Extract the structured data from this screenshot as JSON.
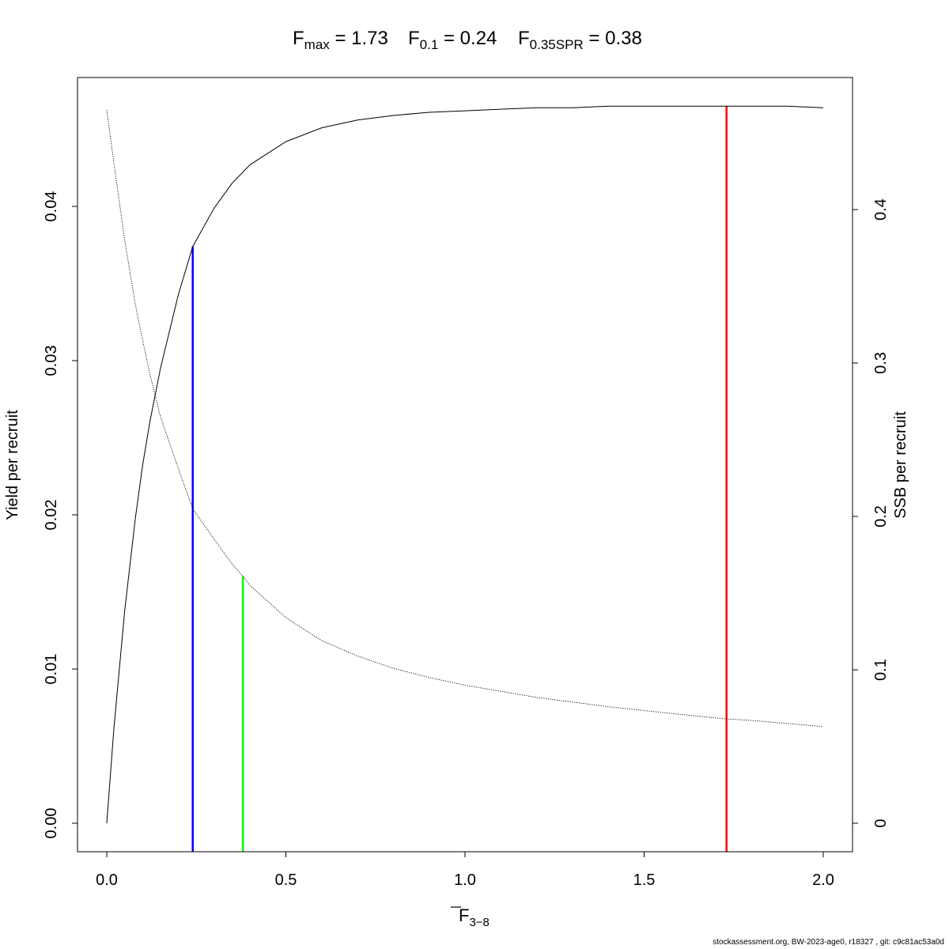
{
  "title": {
    "fmax": {
      "base": "F",
      "sub": "max",
      "value": "1.73"
    },
    "f01": {
      "base": "F",
      "sub": "0.1",
      "value": "0.24"
    },
    "fspr": {
      "base": "F",
      "sub": "0.35SPR",
      "value": "0.38"
    }
  },
  "footer": "stockassessment.org, BW-2023-age0, r18327 , git: c9c81ac53a0d",
  "chart_data": {
    "type": "line",
    "title": "Fmax = 1.73   F0.1 = 0.24   F0.35SPR = 0.38",
    "xlabel": {
      "base": "F",
      "sub": "3−8",
      "overline": true
    },
    "ylabel_left": "Yield per recruit",
    "ylabel_right": "SSB per recruit",
    "xlim": [
      0,
      2
    ],
    "ylim_left": [
      0,
      0.0465
    ],
    "ylim_right": [
      0,
      0.465
    ],
    "x_ticks": [
      "0.0",
      "0.5",
      "1.0",
      "1.5",
      "2.0"
    ],
    "x_tick_values": [
      0,
      0.5,
      1.0,
      1.5,
      2.0
    ],
    "y_left_ticks": [
      "0.00",
      "0.01",
      "0.02",
      "0.03",
      "0.04"
    ],
    "y_left_tick_values": [
      0,
      0.01,
      0.02,
      0.03,
      0.04
    ],
    "y_right_ticks": [
      "0",
      "0.1",
      "0.2",
      "0.3",
      "0.4"
    ],
    "y_right_tick_values": [
      0,
      0.1,
      0.2,
      0.3,
      0.4
    ],
    "grid": false,
    "series": [
      {
        "axis": "left",
        "style": "solid",
        "color": "#000000",
        "x": [
          0,
          0.02,
          0.05,
          0.08,
          0.1,
          0.12,
          0.15,
          0.2,
          0.24,
          0.3,
          0.35,
          0.4,
          0.5,
          0.6,
          0.7,
          0.8,
          0.9,
          1.0,
          1.1,
          1.2,
          1.3,
          1.4,
          1.5,
          1.6,
          1.73,
          1.8,
          1.9,
          2.0
        ],
        "y": [
          0,
          0.0062,
          0.0138,
          0.0198,
          0.0232,
          0.026,
          0.0295,
          0.0343,
          0.0374,
          0.0399,
          0.0415,
          0.0427,
          0.0442,
          0.0451,
          0.0456,
          0.0459,
          0.0461,
          0.0462,
          0.0463,
          0.0464,
          0.0464,
          0.0465,
          0.0465,
          0.0465,
          0.0465,
          0.0465,
          0.0465,
          0.0464
        ]
      },
      {
        "axis": "right",
        "style": "dotted",
        "color": "#000000",
        "x": [
          0,
          0.02,
          0.05,
          0.08,
          0.1,
          0.12,
          0.15,
          0.2,
          0.24,
          0.3,
          0.35,
          0.38,
          0.4,
          0.5,
          0.6,
          0.7,
          0.8,
          0.9,
          1.0,
          1.2,
          1.4,
          1.6,
          1.73,
          1.8,
          2.0
        ],
        "y": [
          0.465,
          0.43,
          0.38,
          0.338,
          0.315,
          0.293,
          0.265,
          0.231,
          0.205,
          0.185,
          0.169,
          0.161,
          0.155,
          0.134,
          0.119,
          0.109,
          0.101,
          0.095,
          0.09,
          0.082,
          0.076,
          0.071,
          0.068,
          0.067,
          0.063
        ]
      }
    ],
    "reference_lines": [
      {
        "name": "Fmax",
        "x": 1.73,
        "y_top_left": 0.0465,
        "color": "#ff0000"
      },
      {
        "name": "F0.1",
        "x": 0.24,
        "y_top_left": 0.0374,
        "color": "#0000ff"
      },
      {
        "name": "F0.35SPR",
        "x": 0.38,
        "y_top_right": 0.161,
        "color": "#00ff00"
      }
    ]
  }
}
